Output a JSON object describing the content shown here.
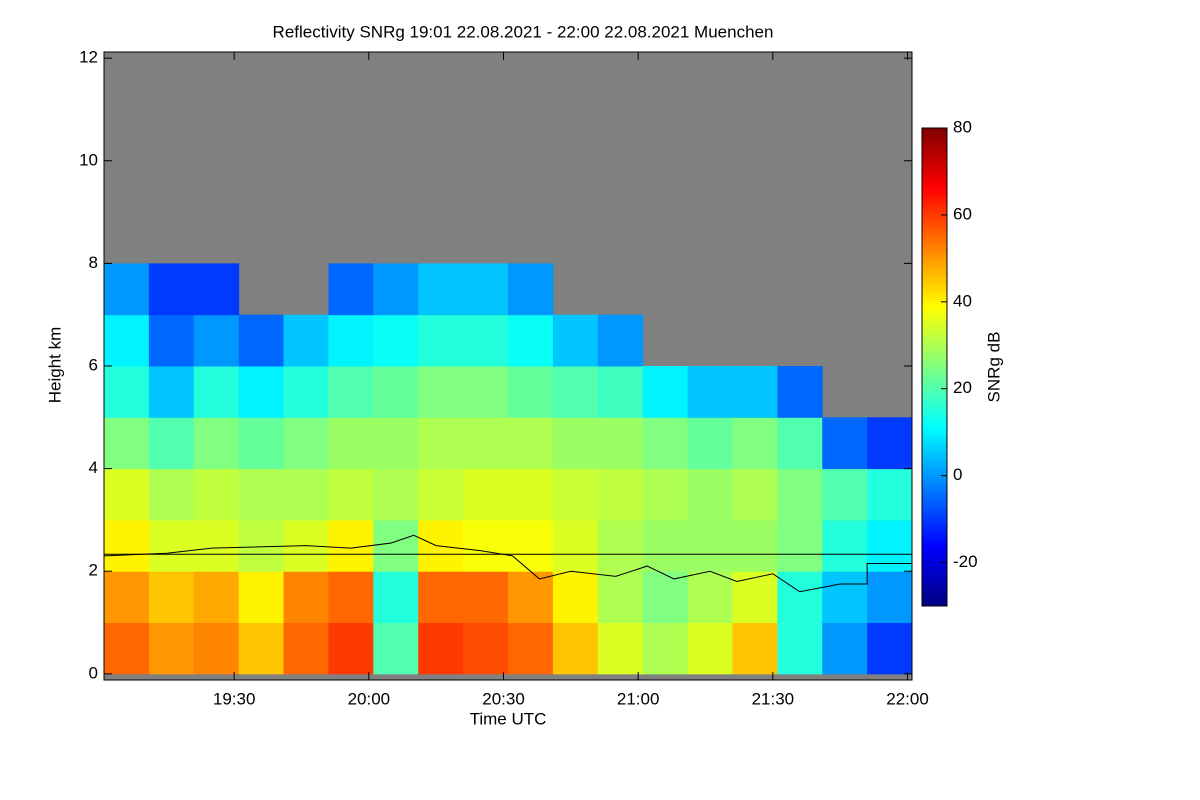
{
  "chart_data": {
    "type": "heatmap",
    "title": "Reflectivity SNRg   19:01 22.08.2021 - 22:00 22.08.2021 Muenchen",
    "x_label": "Time UTC",
    "y_label": "Height km",
    "colorbar_label": "SNRg dB",
    "xlim": [
      1141,
      1321
    ],
    "ylim": [
      -0.12,
      12.12
    ],
    "xticks": [
      {
        "value": 1170,
        "label": "19:30"
      },
      {
        "value": 1200,
        "label": "20:00"
      },
      {
        "value": 1230,
        "label": "20:30"
      },
      {
        "value": 1260,
        "label": "21:00"
      },
      {
        "value": 1290,
        "label": "21:30"
      },
      {
        "value": 1320,
        "label": "22:00"
      }
    ],
    "yticks": [
      0,
      2,
      4,
      6,
      8,
      10,
      12
    ],
    "clim": [
      -30,
      80
    ],
    "cticks": [
      -20,
      0,
      20,
      40,
      60,
      80
    ],
    "colormap": "jet",
    "background": "#808080",
    "x_edges": [
      1141,
      1151,
      1161,
      1171,
      1181,
      1191,
      1201,
      1211,
      1221,
      1231,
      1241,
      1251,
      1261,
      1271,
      1281,
      1291,
      1301,
      1311,
      1321
    ],
    "y_edges": [
      0,
      1,
      2,
      3,
      4,
      5,
      6,
      7,
      8
    ],
    "values": [
      [
        55,
        50,
        40,
        35,
        25,
        15,
        10,
        0
      ],
      [
        50,
        45,
        35,
        30,
        20,
        5,
        -5,
        -10
      ],
      [
        52,
        48,
        35,
        32,
        25,
        15,
        0,
        -10
      ],
      [
        45,
        40,
        32,
        30,
        22,
        10,
        -5,
        null
      ],
      [
        55,
        52,
        35,
        30,
        25,
        15,
        5,
        null
      ],
      [
        60,
        55,
        40,
        32,
        28,
        20,
        10,
        -5
      ],
      [
        20,
        15,
        25,
        30,
        28,
        22,
        12,
        0
      ],
      [
        60,
        55,
        40,
        33,
        30,
        25,
        15,
        5
      ],
      [
        58,
        55,
        38,
        35,
        30,
        25,
        15,
        5
      ],
      [
        55,
        50,
        38,
        35,
        30,
        22,
        12,
        0
      ],
      [
        45,
        40,
        35,
        33,
        28,
        20,
        5,
        null
      ],
      [
        35,
        30,
        30,
        32,
        28,
        18,
        0,
        null
      ],
      [
        30,
        25,
        28,
        30,
        25,
        10,
        null,
        null
      ],
      [
        35,
        30,
        28,
        28,
        22,
        5,
        null,
        null
      ],
      [
        45,
        35,
        28,
        30,
        25,
        5,
        null,
        null
      ],
      [
        15,
        15,
        25,
        25,
        20,
        -5,
        null,
        null
      ],
      [
        0,
        5,
        15,
        20,
        -5,
        null,
        null,
        null
      ],
      [
        -10,
        0,
        10,
        15,
        -10,
        null,
        null,
        null
      ]
    ],
    "lines": [
      {
        "color": "#000000",
        "x": [
          1141,
          1321
        ],
        "y": [
          2.33,
          2.33
        ]
      },
      {
        "color": "#000000",
        "x": [
          1141,
          1155,
          1165,
          1186,
          1196,
          1205,
          1210,
          1215,
          1225,
          1232,
          1238,
          1245,
          1255,
          1262,
          1268,
          1276,
          1282,
          1290,
          1296,
          1305,
          1311,
          1311,
          1321
        ],
        "y": [
          2.3,
          2.35,
          2.45,
          2.5,
          2.45,
          2.55,
          2.7,
          2.5,
          2.4,
          2.3,
          1.85,
          2.0,
          1.9,
          2.1,
          1.85,
          2.0,
          1.8,
          1.95,
          1.6,
          1.75,
          1.75,
          2.15,
          2.15
        ]
      }
    ]
  }
}
